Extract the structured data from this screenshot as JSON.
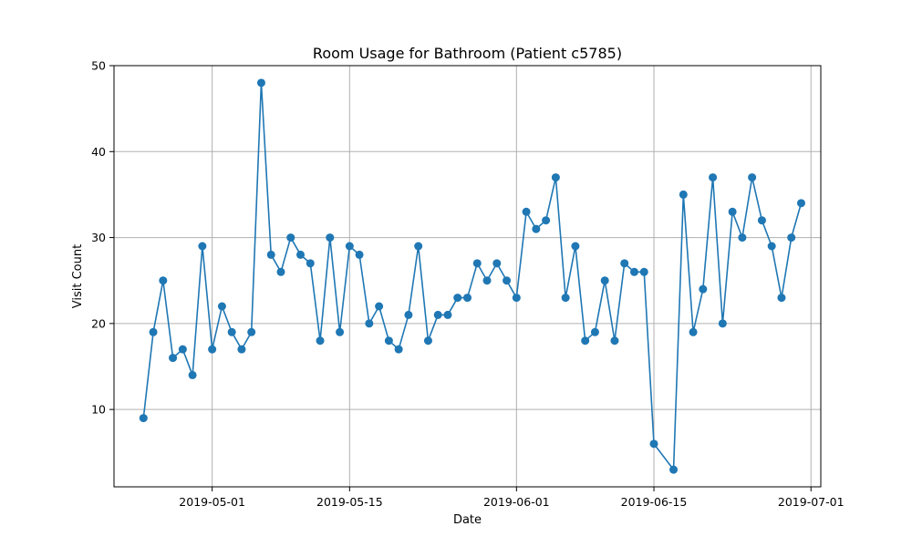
{
  "chart_data": {
    "type": "line",
    "title": "Room Usage for Bathroom (Patient c5785)",
    "xlabel": "Date",
    "ylabel": "Visit Count",
    "xlim": [
      "2019-04-21",
      "2019-07-02"
    ],
    "ylim": [
      1,
      50
    ],
    "x_ticks": [
      "2019-05-01",
      "2019-05-15",
      "2019-06-01",
      "2019-06-15",
      "2019-07-01"
    ],
    "y_ticks": [
      10,
      20,
      30,
      40,
      50
    ],
    "grid": true,
    "color": "#1f77b4",
    "marker": "circle",
    "series": [
      {
        "points": [
          [
            "2019-04-24",
            9
          ],
          [
            "2019-04-25",
            19
          ],
          [
            "2019-04-26",
            25
          ],
          [
            "2019-04-27",
            16
          ],
          [
            "2019-04-28",
            17
          ],
          [
            "2019-04-29",
            14
          ],
          [
            "2019-04-30",
            29
          ],
          [
            "2019-05-01",
            17
          ],
          [
            "2019-05-02",
            22
          ],
          [
            "2019-05-03",
            19
          ],
          [
            "2019-05-04",
            17
          ],
          [
            "2019-05-05",
            19
          ],
          [
            "2019-05-06",
            48
          ],
          [
            "2019-05-07",
            28
          ],
          [
            "2019-05-08",
            26
          ],
          [
            "2019-05-09",
            30
          ],
          [
            "2019-05-10",
            28
          ],
          [
            "2019-05-11",
            27
          ],
          [
            "2019-05-12",
            18
          ],
          [
            "2019-05-13",
            30
          ],
          [
            "2019-05-14",
            19
          ],
          [
            "2019-05-15",
            29
          ],
          [
            "2019-05-16",
            28
          ],
          [
            "2019-05-17",
            20
          ],
          [
            "2019-05-18",
            22
          ],
          [
            "2019-05-19",
            18
          ],
          [
            "2019-05-20",
            17
          ],
          [
            "2019-05-21",
            21
          ],
          [
            "2019-05-22",
            29
          ],
          [
            "2019-05-23",
            18
          ],
          [
            "2019-05-24",
            21
          ],
          [
            "2019-05-25",
            21
          ],
          [
            "2019-05-26",
            23
          ],
          [
            "2019-05-27",
            23
          ],
          [
            "2019-05-28",
            27
          ],
          [
            "2019-05-29",
            25
          ],
          [
            "2019-05-30",
            27
          ],
          [
            "2019-05-31",
            25
          ],
          [
            "2019-06-01",
            23
          ],
          [
            "2019-06-02",
            33
          ],
          [
            "2019-06-03",
            31
          ],
          [
            "2019-06-04",
            32
          ],
          [
            "2019-06-05",
            37
          ],
          [
            "2019-06-06",
            23
          ],
          [
            "2019-06-07",
            29
          ],
          [
            "2019-06-08",
            18
          ],
          [
            "2019-06-09",
            19
          ],
          [
            "2019-06-10",
            25
          ],
          [
            "2019-06-11",
            18
          ],
          [
            "2019-06-12",
            27
          ],
          [
            "2019-06-13",
            26
          ],
          [
            "2019-06-14",
            26
          ],
          [
            "2019-06-15",
            6
          ],
          [
            "2019-06-17",
            3
          ],
          [
            "2019-06-18",
            35
          ],
          [
            "2019-06-19",
            19
          ],
          [
            "2019-06-20",
            24
          ],
          [
            "2019-06-21",
            37
          ],
          [
            "2019-06-22",
            20
          ],
          [
            "2019-06-23",
            33
          ],
          [
            "2019-06-24",
            30
          ],
          [
            "2019-06-25",
            37
          ],
          [
            "2019-06-26",
            32
          ],
          [
            "2019-06-27",
            29
          ],
          [
            "2019-06-28",
            23
          ],
          [
            "2019-06-29",
            30
          ],
          [
            "2019-06-30",
            34
          ]
        ]
      }
    ]
  }
}
